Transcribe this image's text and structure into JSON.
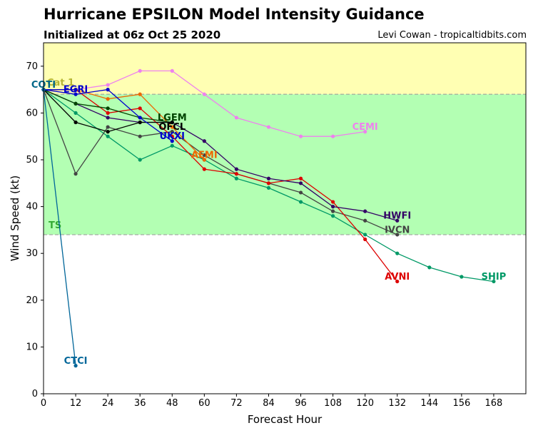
{
  "chart_data": {
    "type": "line",
    "title": "Hurricane EPSILON Model Intensity Guidance",
    "subtitle": "Initialized at 06z Oct 25 2020",
    "credit": "Levi Cowan - tropicaltidbits.com",
    "xlabel": "Forecast Hour",
    "ylabel": "Wind Speed (kt)",
    "xlim": [
      0,
      180
    ],
    "ylim": [
      0,
      75
    ],
    "xticks": [
      0,
      12,
      24,
      36,
      48,
      60,
      72,
      84,
      96,
      108,
      120,
      132,
      144,
      156,
      168
    ],
    "yticks": [
      0,
      10,
      20,
      30,
      40,
      50,
      60,
      70
    ],
    "bands": [
      {
        "label": "Cat 1",
        "from": 64,
        "to": 75,
        "color": "#ffffb3"
      },
      {
        "label": "TS",
        "from": 34,
        "to": 64,
        "color": "#b3ffb3"
      }
    ],
    "band_label_colors": {
      "Cat 1": "#b5b533",
      "TS": "#33aa33"
    },
    "series": [
      {
        "name": "CEMI",
        "color": "#ee82ee",
        "label_at": [
          120,
          57
        ],
        "x": [
          0,
          12,
          24,
          36,
          48,
          60,
          72,
          84,
          96,
          108,
          120
        ],
        "values": [
          65,
          65,
          66,
          69,
          69,
          64,
          59,
          57,
          55,
          55,
          56
        ]
      },
      {
        "name": "SHIP",
        "color": "#009966",
        "label_at": [
          168,
          25
        ],
        "x": [
          0,
          12,
          24,
          36,
          48,
          60,
          72,
          84,
          96,
          108,
          120,
          132,
          144,
          156,
          168
        ],
        "values": [
          65,
          60,
          55,
          50,
          53,
          50,
          46,
          44,
          41,
          38,
          34,
          30,
          27,
          25,
          24
        ]
      },
      {
        "name": "IVCN",
        "color": "#444444",
        "label_at": [
          132,
          35
        ],
        "x": [
          0,
          12,
          24,
          36,
          48,
          60,
          72,
          84,
          96,
          108,
          120,
          132
        ],
        "values": [
          65,
          47,
          57,
          55,
          56,
          51,
          47,
          45,
          43,
          39,
          37,
          34
        ]
      },
      {
        "name": "AVNI",
        "color": "#dd0000",
        "label_at": [
          132,
          25
        ],
        "x": [
          0,
          12,
          24,
          36,
          48,
          60,
          72,
          84,
          96,
          108,
          120,
          132
        ],
        "values": [
          65,
          65,
          60,
          61,
          55,
          48,
          47,
          45,
          46,
          41,
          33,
          24
        ]
      },
      {
        "name": "AEMI",
        "color": "#ee6600",
        "label_at": [
          60,
          51
        ],
        "x": [
          0,
          12,
          24,
          36,
          48,
          60
        ],
        "values": [
          65,
          65,
          63,
          64,
          57,
          50
        ]
      },
      {
        "name": "HWFI",
        "color": "#330066",
        "label_at": [
          132,
          38
        ],
        "x": [
          0,
          12,
          24,
          36,
          48,
          60,
          72,
          84,
          96,
          108,
          120,
          132
        ],
        "values": [
          65,
          62,
          59,
          58,
          58,
          54,
          48,
          46,
          45,
          40,
          39,
          37
        ]
      },
      {
        "name": "LGEM",
        "color": "#004400",
        "label_at": [
          48,
          59
        ],
        "x": [
          0,
          12,
          24,
          36,
          48
        ],
        "values": [
          65,
          62,
          61,
          59,
          58
        ]
      },
      {
        "name": "OFCL",
        "color": "#000000",
        "label_at": [
          48,
          57
        ],
        "x": [
          0,
          12,
          24,
          36,
          48
        ],
        "values": [
          65,
          58,
          56,
          58,
          58
        ]
      },
      {
        "name": "UKXI",
        "color": "#0000cc",
        "label_at": [
          48,
          55
        ],
        "x": [
          0,
          12,
          24,
          36,
          48
        ],
        "values": [
          65,
          64,
          65,
          59,
          54
        ]
      },
      {
        "name": "EGRI",
        "color": "#0000cc",
        "label_at": [
          12,
          65
        ],
        "x": [
          0,
          12
        ],
        "values": [
          65,
          65
        ]
      },
      {
        "name": "COTI",
        "color": "#006688",
        "label_at": [
          0,
          66
        ],
        "x": [
          0
        ],
        "values": [
          65
        ]
      },
      {
        "name": "CTCI",
        "color": "#006699",
        "label_at": [
          12,
          7
        ],
        "x": [
          0,
          12
        ],
        "values": [
          65,
          6
        ]
      }
    ]
  }
}
